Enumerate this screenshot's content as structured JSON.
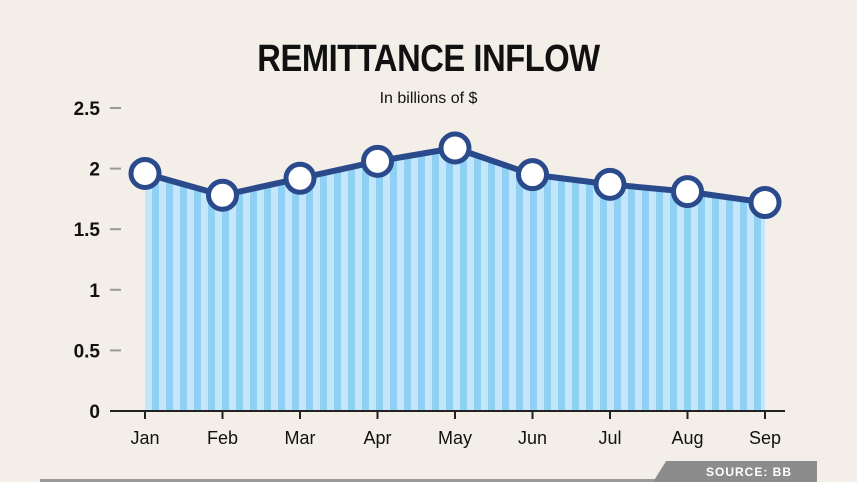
{
  "chart_data": {
    "type": "area",
    "title": "REMITTANCE INFLOW",
    "subtitle": "In billions of $",
    "categories": [
      "Jan",
      "Feb",
      "Mar",
      "Apr",
      "May",
      "Jun",
      "Jul",
      "Aug",
      "Sep"
    ],
    "values": [
      1.96,
      1.78,
      1.92,
      2.06,
      2.17,
      1.95,
      1.87,
      1.81,
      1.72
    ],
    "yticks": [
      "0",
      "0.5",
      "1",
      "1.5",
      "2",
      "2.5"
    ],
    "ylim": [
      0,
      2.5
    ],
    "xlabel": "",
    "ylabel": "",
    "grid": false,
    "colors": {
      "line": "#2b4a8c",
      "fill_light": "#c3e6fb",
      "fill_dark": "#8fd0f3",
      "marker_fill": "#ffffff",
      "background": "#f3efe8"
    }
  },
  "source_label": "SOURCE: BB"
}
